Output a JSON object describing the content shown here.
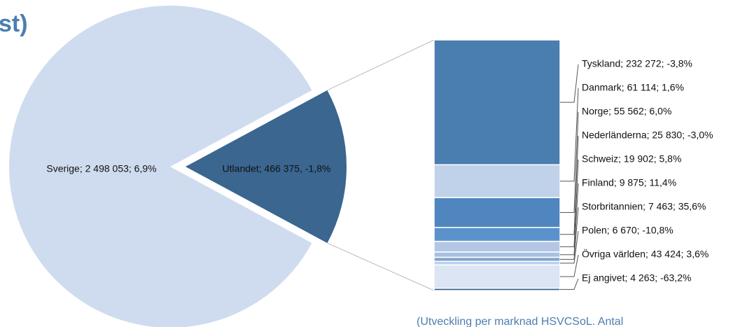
{
  "chart_data": {
    "type": "pie",
    "title": "st)",
    "subtitle": "(Utveckling per marknad HSVCSoL. Antal",
    "values": [
      2498053,
      466375
    ],
    "value_labels": [
      "Sverige; 2 498 053; 6,9%",
      "Utlandet; 466 375, -1,8%"
    ],
    "colors": [
      "#cfdcef",
      "#3a6690"
    ],
    "breakdown": {
      "values": [
        232272,
        61114,
        55562,
        25830,
        19902,
        9875,
        7463,
        6670,
        43424,
        4263
      ],
      "value_labels": [
        "Tyskland; 232 272; -3,8%",
        "Danmark; 61 114; 1,6%",
        "Norge; 55 562; 6,0%",
        "Nederländerna; 25 830; -3,0%",
        "Schweiz; 19 902; 5,8%",
        "Finland; 9 875; 11,4%",
        "Storbritannien; 7 463; 35,6%",
        "Polen; 6 670; -10,8%",
        "Övriga världen; 43 424; 3,6%",
        "Ej angivet; 4 263; -63,2%"
      ],
      "colors": [
        "#4a7eb0",
        "#c0d2ea",
        "#4f86bf",
        "#5b92cc",
        "#b3c7e5",
        "#a8c0e0",
        "#7fa3d1",
        "#bdd0ea",
        "#dbe5f3",
        "#36618d"
      ]
    }
  }
}
